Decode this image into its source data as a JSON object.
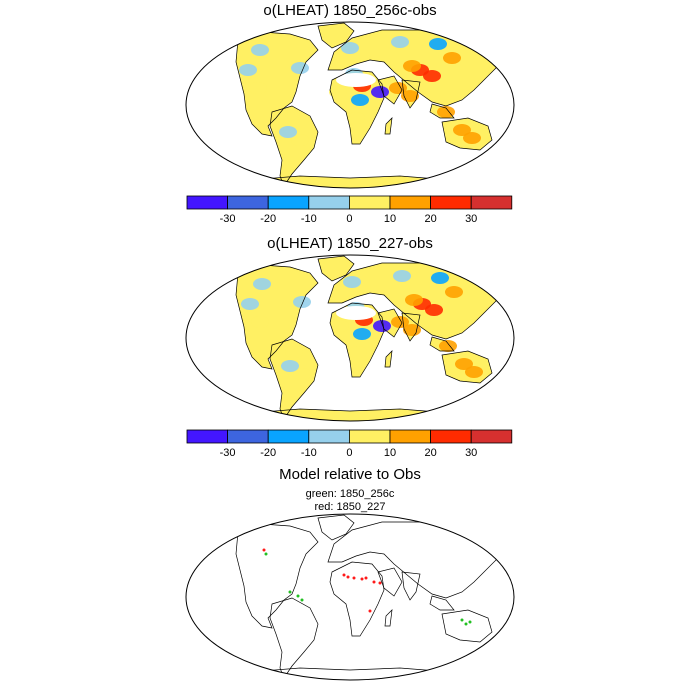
{
  "panels": [
    {
      "title": "o(LHEAT) 1850_256c-obs"
    },
    {
      "title": "o(LHEAT) 1850_227-obs"
    }
  ],
  "colorbar": {
    "colors": [
      "#4316ff",
      "#3d65df",
      "#09a4ff",
      "#96d0ec",
      "#fff063",
      "#ffa100",
      "#ff2b00",
      "#d6302f"
    ],
    "labels": [
      "-30",
      "-20",
      "-10",
      "0",
      "10",
      "20",
      "30"
    ]
  },
  "comparison": {
    "title": "Model relative to Obs",
    "green_label": "green: 1850_256c",
    "red_label": "red: 1850_227",
    "green_color": "#22c022",
    "red_color": "#ff1a1a"
  }
}
